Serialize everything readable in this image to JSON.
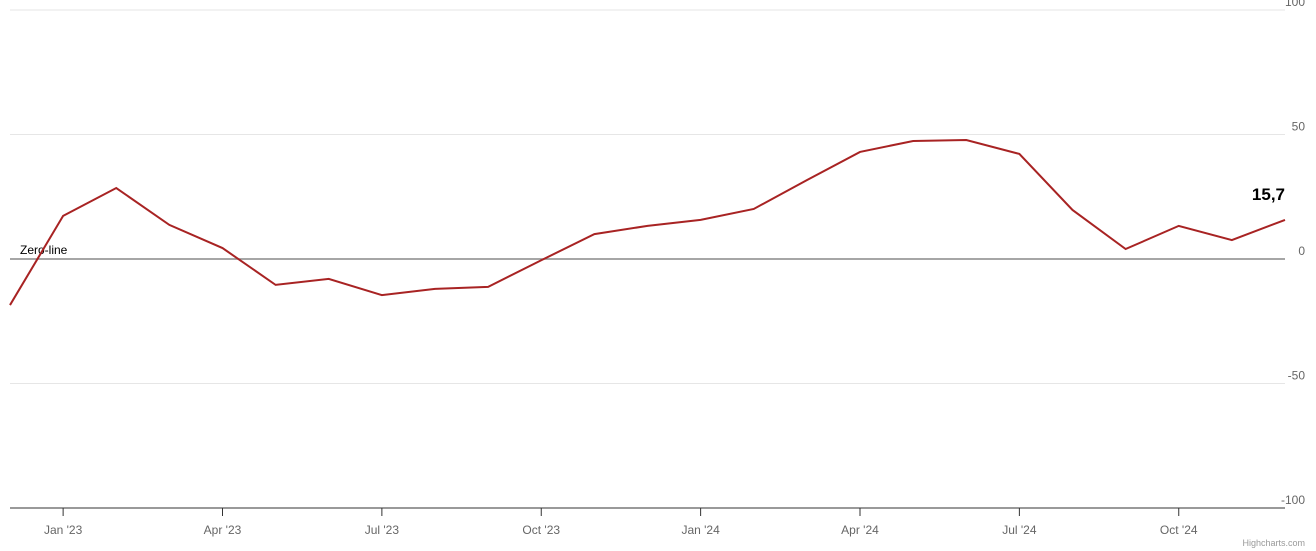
{
  "chart_data": {
    "type": "line",
    "x": [
      "2022-12",
      "2023-01",
      "2023-02",
      "2023-03",
      "2023-04",
      "2023-05",
      "2023-06",
      "2023-07",
      "2023-08",
      "2023-09",
      "2023-10",
      "2023-11",
      "2023-12",
      "2024-01",
      "2024-02",
      "2024-03",
      "2024-04",
      "2024-05",
      "2024-06",
      "2024-07",
      "2024-08",
      "2024-09",
      "2024-10",
      "2024-11",
      "2024-12"
    ],
    "series": [
      {
        "color": "#a82323",
        "values": [
          -18.5,
          17.3,
          28.5,
          13.7,
          4.4,
          -10.4,
          -8.0,
          -14.5,
          -12.0,
          -11.2,
          -0.5,
          10.0,
          13.3,
          15.7,
          20.1,
          31.7,
          43.0,
          47.4,
          47.8,
          42.2,
          19.7,
          4.0,
          13.3,
          7.6,
          15.7
        ],
        "value_labels": [
          null,
          null,
          null,
          null,
          null,
          null,
          null,
          null,
          null,
          null,
          null,
          null,
          null,
          null,
          null,
          null,
          null,
          null,
          null,
          null,
          null,
          null,
          null,
          null,
          "15,7"
        ]
      }
    ],
    "xlim": [
      "2022-12",
      "2024-12"
    ],
    "xticks": [
      {
        "value": "2023-01",
        "label": "Jan '23"
      },
      {
        "value": "2023-04",
        "label": "Apr '23"
      },
      {
        "value": "2023-07",
        "label": "Jul '23"
      },
      {
        "value": "2023-10",
        "label": "Oct '23"
      },
      {
        "value": "2024-01",
        "label": "Jan '24"
      },
      {
        "value": "2024-04",
        "label": "Apr '24"
      },
      {
        "value": "2024-07",
        "label": "Jul '24"
      },
      {
        "value": "2024-10",
        "label": "Oct '24"
      }
    ],
    "ylim": [
      -100,
      100
    ],
    "yticks": [
      100,
      50,
      0,
      -50,
      -100
    ],
    "grid": true,
    "zero_line_label": "Zero-line",
    "credits": "Highcharts.com"
  }
}
